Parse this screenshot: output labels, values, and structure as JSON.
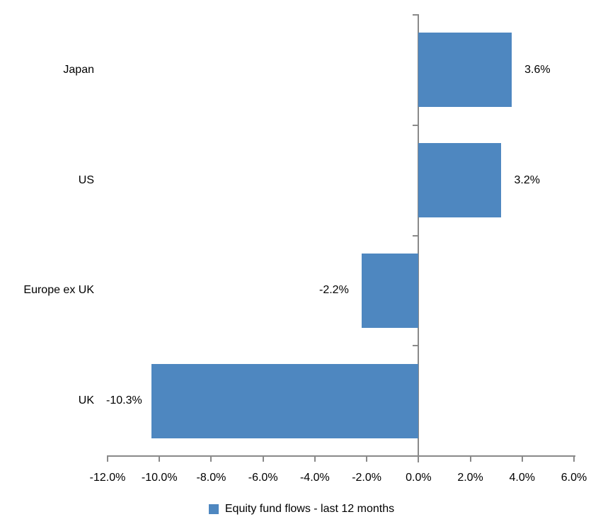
{
  "chart_data": {
    "type": "bar",
    "orientation": "horizontal",
    "categories": [
      "Japan",
      "US",
      "Europe ex UK",
      "UK"
    ],
    "values": [
      3.6,
      3.2,
      -2.2,
      -10.3
    ],
    "data_labels": [
      "3.6%",
      "3.2%",
      "-2.2%",
      "-10.3%"
    ],
    "series_name": "Equity fund flows - last 12 months",
    "title": "",
    "xlabel": "",
    "ylabel": "",
    "xlim": [
      -12,
      6
    ],
    "x_ticks": [
      -12,
      -10,
      -8,
      -6,
      -4,
      -2,
      0,
      2,
      4,
      6
    ],
    "x_tick_labels": [
      "-12.0%",
      "-10.0%",
      "-8.0%",
      "-6.0%",
      "-4.0%",
      "-2.0%",
      "0.0%",
      "2.0%",
      "4.0%",
      "6.0%"
    ],
    "grid": false,
    "legend_position": "bottom",
    "bar_color": "#4E87C0",
    "axis_color": "#898989",
    "text_color": "#000000"
  }
}
